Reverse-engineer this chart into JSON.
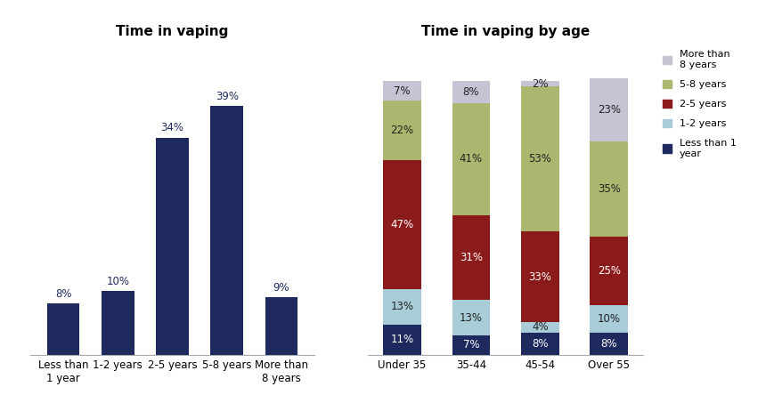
{
  "bar_title": "Time in vaping",
  "bar_categories": [
    "Less than\n1 year",
    "1-2 years",
    "2-5 years",
    "5-8 years",
    "More than\n8 years"
  ],
  "bar_values": [
    8,
    10,
    34,
    39,
    9
  ],
  "bar_color": "#1e2a5e",
  "stacked_title": "Time in vaping by age",
  "stacked_categories": [
    "Under 35",
    "35-44",
    "45-54",
    "Over 55"
  ],
  "stacked_data": {
    "Less than 1 year": [
      11,
      7,
      8,
      8
    ],
    "1-2 years": [
      13,
      13,
      4,
      10
    ],
    "2-5 years": [
      47,
      31,
      33,
      25
    ],
    "5-8 years": [
      22,
      41,
      53,
      35
    ],
    "More than 8 years": [
      7,
      8,
      2,
      23
    ]
  },
  "stacked_colors": {
    "Less than 1 year": "#1e2a5e",
    "1-2 years": "#a8cdd8",
    "2-5 years": "#8b1a1a",
    "5-8 years": "#a9b86e",
    "More than 8 years": "#c4c4d4"
  },
  "legend_display": [
    "More than\n8 years",
    "5-8 years",
    "2-5 years",
    "1-2 years",
    "Less than 1\nyear"
  ],
  "legend_keys": [
    "More than 8 years",
    "5-8 years",
    "2-5 years",
    "1-2 years",
    "Less than 1 year"
  ],
  "text_colors": {
    "Less than 1 year": "white",
    "1-2 years": "#222222",
    "2-5 years": "white",
    "5-8 years": "#222222",
    "More than 8 years": "#222222"
  },
  "bg_color": "#ffffff",
  "title_fontsize": 11,
  "label_fontsize": 8.5,
  "tick_fontsize": 8.5
}
